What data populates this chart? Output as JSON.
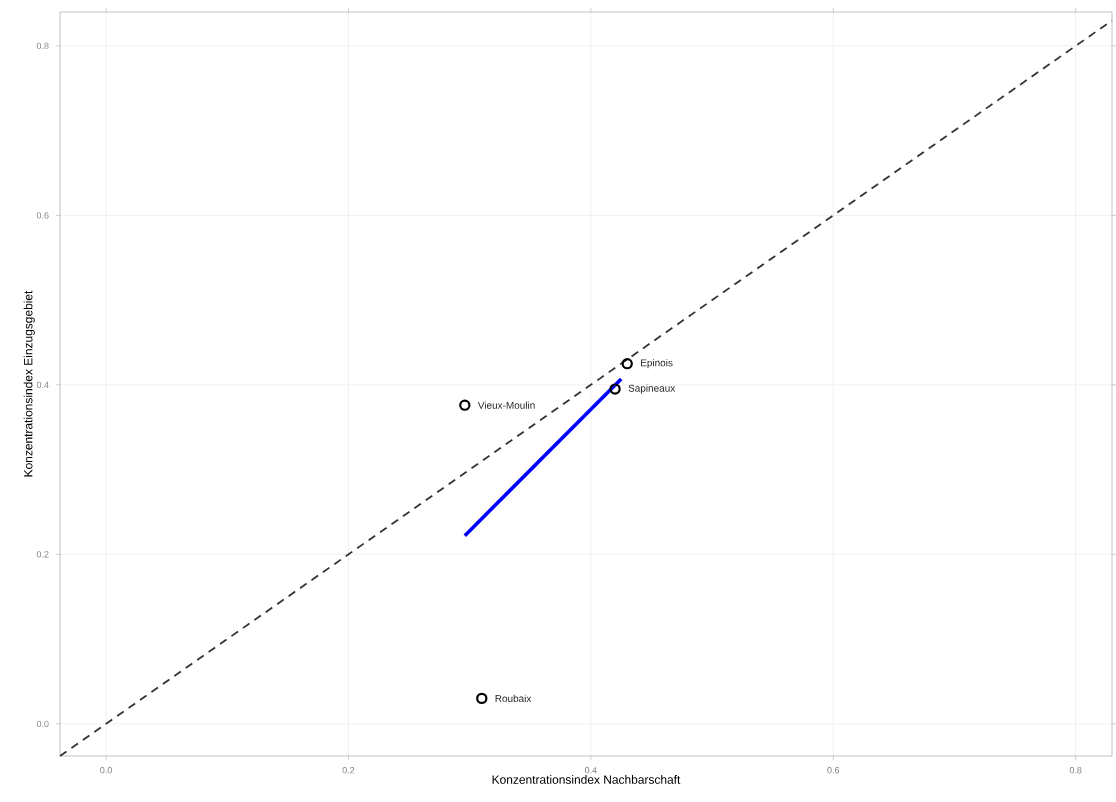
{
  "chart_data": {
    "type": "scatter",
    "xlabel": "Konzentrationsindex Nachbarschaft",
    "ylabel": "Konzentrationsindex Einzugsgebiet",
    "xlim": [
      -0.038,
      0.83
    ],
    "ylim": [
      -0.038,
      0.84
    ],
    "xticks": [
      {
        "value": 0,
        "label": "0.0"
      },
      0.2,
      0.4,
      0.6,
      0.8
    ],
    "yticks": [
      {
        "value": 0,
        "label": "0.0"
      },
      0.2,
      0.4,
      0.6,
      0.8
    ],
    "grid": true,
    "series": [
      {
        "type": "line",
        "color": "#333333",
        "line_style": "dashed",
        "x": [
          -0.038,
          0.83
        ],
        "values": [
          -0.038,
          0.83
        ]
      },
      {
        "type": "line",
        "color": "#0000ff",
        "line_style": "solid",
        "x": [
          0.296,
          0.425
        ],
        "values": [
          0.222,
          0.407
        ]
      },
      {
        "color": "#000000",
        "marker": "circle",
        "x": [
          0.296,
          0.43,
          0.42,
          0.31
        ],
        "values": [
          0.376,
          0.425,
          0.395,
          0.03
        ]
      }
    ],
    "annotations": [
      {
        "text": "Vieux-Moulin",
        "x": 0.296,
        "y": 0.376
      },
      {
        "text": "Epinois",
        "x": 0.43,
        "y": 0.425
      },
      {
        "text": "Sapineaux",
        "x": 0.42,
        "y": 0.395
      },
      {
        "text": "Roubaix",
        "x": 0.31,
        "y": 0.03
      }
    ]
  }
}
